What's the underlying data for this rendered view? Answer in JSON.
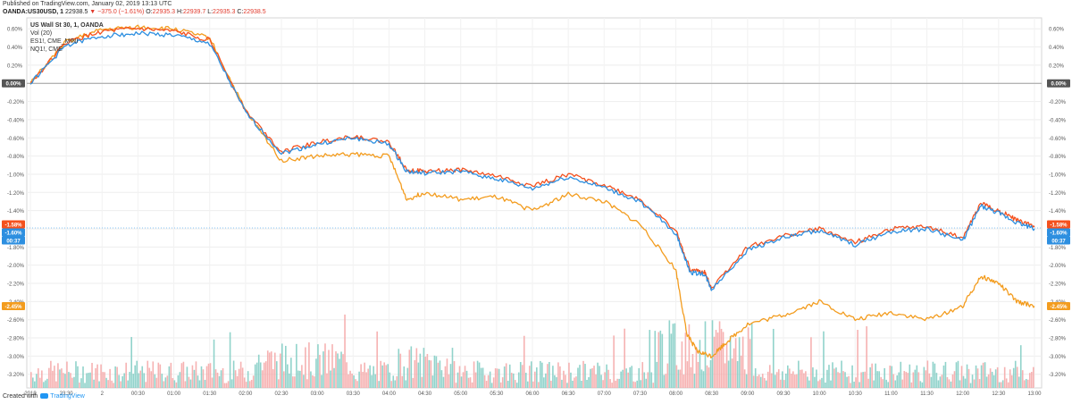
{
  "header": {
    "published": "Published on TradingView.com, January 02, 2019 13:13 UTC",
    "symbol": "OANDA:US30USD, 1",
    "price": "22938.5",
    "change": "▼ −375.0 (−1.61%)",
    "o_label": "O:",
    "o_value": "22935.3",
    "h_label": "H:",
    "h_value": "22939.7",
    "l_label": "L:",
    "l_value": "22935.3",
    "c_label": "C:",
    "c_value": "22938.5"
  },
  "legend": {
    "title": "US Wall St 30, 1, OANDA",
    "vol": "Vol (20)",
    "es": "ES1!, CME_MINI",
    "nq": "NQ1!, CME"
  },
  "footer": {
    "created": "Created with",
    "brand": "TradingView"
  },
  "chart_data": {
    "type": "line",
    "yticks": [
      "0.60%",
      "0.40%",
      "0.20%",
      "0.00%",
      "-0.20%",
      "-0.40%",
      "-0.60%",
      "-0.80%",
      "-1.00%",
      "-1.20%",
      "-1.40%",
      "-1.60%",
      "-1.80%",
      "-2.00%",
      "-2.20%",
      "-2.40%",
      "-2.60%",
      "-2.80%",
      "-3.00%",
      "-3.20%"
    ],
    "ylim": [
      -3.35,
      0.72
    ],
    "xticks": [
      "2019",
      "23:30",
      "2",
      "00:30",
      "01:00",
      "01:30",
      "02:00",
      "02:30",
      "03:00",
      "03:30",
      "04:00",
      "04:30",
      "05:00",
      "05:30",
      "06:00",
      "06:30",
      "07:00",
      "07:30",
      "08:00",
      "08:30",
      "09:00",
      "09:30",
      "10:00",
      "10:30",
      "11:00",
      "11:30",
      "12:00",
      "12:30",
      "13:00"
    ],
    "last_labels": {
      "red_left": "-1.58%",
      "blue_left": "-1.60%",
      "blue_time": "00:37",
      "orange_left": "-2.45%",
      "red_right": "-1.58%",
      "blue_right": "-1.60%",
      "blue_time_right": "00:37",
      "orange_right": "-2.45%",
      "zero_left": "0.00%",
      "zero_right": "0.00%"
    },
    "colors": {
      "red": "#f4511e",
      "blue": "#2d8fe0",
      "orange": "#f39c1e",
      "vol_up": "#7ecbc2",
      "vol_down": "#f5a5a5"
    },
    "series": [
      {
        "key": "red",
        "x": [
          0,
          1,
          2,
          3,
          4,
          5,
          6,
          7,
          8,
          9,
          10,
          10.5,
          11,
          12,
          13,
          14,
          15,
          16,
          17,
          18,
          18.4,
          18.8,
          19,
          20,
          21,
          22,
          23,
          24,
          25,
          26,
          26.5,
          27,
          27.5,
          28
        ],
        "values": [
          0.0,
          0.45,
          0.57,
          0.6,
          0.57,
          0.48,
          -0.3,
          -0.75,
          -0.65,
          -0.58,
          -0.65,
          -0.95,
          -0.97,
          -0.95,
          -1.02,
          -1.13,
          -1.0,
          -1.12,
          -1.28,
          -1.62,
          -2.05,
          -2.08,
          -2.25,
          -1.8,
          -1.68,
          -1.6,
          -1.75,
          -1.6,
          -1.58,
          -1.7,
          -1.32,
          -1.4,
          -1.5,
          -1.58
        ]
      },
      {
        "key": "blue",
        "x": [
          0,
          1,
          2,
          3,
          4,
          5,
          6,
          7,
          8,
          9,
          10,
          10.5,
          11,
          12,
          13,
          14,
          15,
          16,
          17,
          18,
          18.4,
          18.8,
          19,
          20,
          21,
          22,
          23,
          24,
          25,
          26,
          26.5,
          27,
          27.5,
          28
        ],
        "values": [
          0.0,
          0.42,
          0.52,
          0.55,
          0.53,
          0.44,
          -0.32,
          -0.77,
          -0.67,
          -0.6,
          -0.67,
          -0.97,
          -0.99,
          -0.97,
          -1.05,
          -1.16,
          -1.03,
          -1.15,
          -1.3,
          -1.65,
          -2.08,
          -2.1,
          -2.27,
          -1.83,
          -1.7,
          -1.62,
          -1.78,
          -1.63,
          -1.6,
          -1.73,
          -1.35,
          -1.43,
          -1.53,
          -1.6
        ]
      },
      {
        "key": "orange",
        "x": [
          0,
          1,
          2,
          3,
          4,
          5,
          6,
          7,
          8,
          9,
          10,
          10.5,
          11,
          12,
          13,
          14,
          15,
          16,
          17,
          18,
          18.3,
          18.6,
          19,
          19.4,
          20,
          21,
          22,
          23,
          24,
          25,
          26,
          26.5,
          27,
          27.5,
          28
        ],
        "values": [
          0.0,
          0.46,
          0.59,
          0.62,
          0.6,
          0.5,
          -0.3,
          -0.85,
          -0.8,
          -0.78,
          -0.8,
          -1.28,
          -1.2,
          -1.28,
          -1.25,
          -1.4,
          -1.22,
          -1.3,
          -1.55,
          -2.05,
          -2.75,
          -2.95,
          -3.0,
          -2.85,
          -2.65,
          -2.55,
          -2.4,
          -2.6,
          -2.52,
          -2.6,
          -2.45,
          -2.12,
          -2.2,
          -2.4,
          -2.45
        ]
      }
    ]
  }
}
